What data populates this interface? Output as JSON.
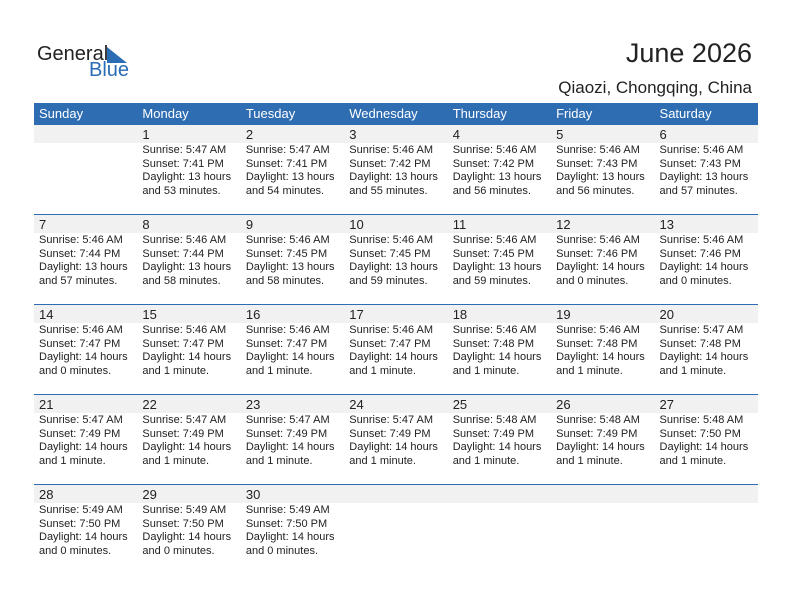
{
  "logo": {
    "text1": "General",
    "text2": "Blue"
  },
  "header": {
    "title": "June 2026",
    "location": "Qiaozi, Chongqing, China"
  },
  "colors": {
    "accent": "#2f6db3",
    "strip": "#f1f1f1"
  },
  "weekdays": [
    "Sunday",
    "Monday",
    "Tuesday",
    "Wednesday",
    "Thursday",
    "Friday",
    "Saturday"
  ],
  "weeks": [
    [
      null,
      {
        "day": "1",
        "sunrise": "Sunrise: 5:47 AM",
        "sunset": "Sunset: 7:41 PM",
        "daylight1": "Daylight: 13 hours",
        "daylight2": "and 53 minutes."
      },
      {
        "day": "2",
        "sunrise": "Sunrise: 5:47 AM",
        "sunset": "Sunset: 7:41 PM",
        "daylight1": "Daylight: 13 hours",
        "daylight2": "and 54 minutes."
      },
      {
        "day": "3",
        "sunrise": "Sunrise: 5:46 AM",
        "sunset": "Sunset: 7:42 PM",
        "daylight1": "Daylight: 13 hours",
        "daylight2": "and 55 minutes."
      },
      {
        "day": "4",
        "sunrise": "Sunrise: 5:46 AM",
        "sunset": "Sunset: 7:42 PM",
        "daylight1": "Daylight: 13 hours",
        "daylight2": "and 56 minutes."
      },
      {
        "day": "5",
        "sunrise": "Sunrise: 5:46 AM",
        "sunset": "Sunset: 7:43 PM",
        "daylight1": "Daylight: 13 hours",
        "daylight2": "and 56 minutes."
      },
      {
        "day": "6",
        "sunrise": "Sunrise: 5:46 AM",
        "sunset": "Sunset: 7:43 PM",
        "daylight1": "Daylight: 13 hours",
        "daylight2": "and 57 minutes."
      }
    ],
    [
      {
        "day": "7",
        "sunrise": "Sunrise: 5:46 AM",
        "sunset": "Sunset: 7:44 PM",
        "daylight1": "Daylight: 13 hours",
        "daylight2": "and 57 minutes."
      },
      {
        "day": "8",
        "sunrise": "Sunrise: 5:46 AM",
        "sunset": "Sunset: 7:44 PM",
        "daylight1": "Daylight: 13 hours",
        "daylight2": "and 58 minutes."
      },
      {
        "day": "9",
        "sunrise": "Sunrise: 5:46 AM",
        "sunset": "Sunset: 7:45 PM",
        "daylight1": "Daylight: 13 hours",
        "daylight2": "and 58 minutes."
      },
      {
        "day": "10",
        "sunrise": "Sunrise: 5:46 AM",
        "sunset": "Sunset: 7:45 PM",
        "daylight1": "Daylight: 13 hours",
        "daylight2": "and 59 minutes."
      },
      {
        "day": "11",
        "sunrise": "Sunrise: 5:46 AM",
        "sunset": "Sunset: 7:45 PM",
        "daylight1": "Daylight: 13 hours",
        "daylight2": "and 59 minutes."
      },
      {
        "day": "12",
        "sunrise": "Sunrise: 5:46 AM",
        "sunset": "Sunset: 7:46 PM",
        "daylight1": "Daylight: 14 hours",
        "daylight2": "and 0 minutes."
      },
      {
        "day": "13",
        "sunrise": "Sunrise: 5:46 AM",
        "sunset": "Sunset: 7:46 PM",
        "daylight1": "Daylight: 14 hours",
        "daylight2": "and 0 minutes."
      }
    ],
    [
      {
        "day": "14",
        "sunrise": "Sunrise: 5:46 AM",
        "sunset": "Sunset: 7:47 PM",
        "daylight1": "Daylight: 14 hours",
        "daylight2": "and 0 minutes."
      },
      {
        "day": "15",
        "sunrise": "Sunrise: 5:46 AM",
        "sunset": "Sunset: 7:47 PM",
        "daylight1": "Daylight: 14 hours",
        "daylight2": "and 1 minute."
      },
      {
        "day": "16",
        "sunrise": "Sunrise: 5:46 AM",
        "sunset": "Sunset: 7:47 PM",
        "daylight1": "Daylight: 14 hours",
        "daylight2": "and 1 minute."
      },
      {
        "day": "17",
        "sunrise": "Sunrise: 5:46 AM",
        "sunset": "Sunset: 7:47 PM",
        "daylight1": "Daylight: 14 hours",
        "daylight2": "and 1 minute."
      },
      {
        "day": "18",
        "sunrise": "Sunrise: 5:46 AM",
        "sunset": "Sunset: 7:48 PM",
        "daylight1": "Daylight: 14 hours",
        "daylight2": "and 1 minute."
      },
      {
        "day": "19",
        "sunrise": "Sunrise: 5:46 AM",
        "sunset": "Sunset: 7:48 PM",
        "daylight1": "Daylight: 14 hours",
        "daylight2": "and 1 minute."
      },
      {
        "day": "20",
        "sunrise": "Sunrise: 5:47 AM",
        "sunset": "Sunset: 7:48 PM",
        "daylight1": "Daylight: 14 hours",
        "daylight2": "and 1 minute."
      }
    ],
    [
      {
        "day": "21",
        "sunrise": "Sunrise: 5:47 AM",
        "sunset": "Sunset: 7:49 PM",
        "daylight1": "Daylight: 14 hours",
        "daylight2": "and 1 minute."
      },
      {
        "day": "22",
        "sunrise": "Sunrise: 5:47 AM",
        "sunset": "Sunset: 7:49 PM",
        "daylight1": "Daylight: 14 hours",
        "daylight2": "and 1 minute."
      },
      {
        "day": "23",
        "sunrise": "Sunrise: 5:47 AM",
        "sunset": "Sunset: 7:49 PM",
        "daylight1": "Daylight: 14 hours",
        "daylight2": "and 1 minute."
      },
      {
        "day": "24",
        "sunrise": "Sunrise: 5:47 AM",
        "sunset": "Sunset: 7:49 PM",
        "daylight1": "Daylight: 14 hours",
        "daylight2": "and 1 minute."
      },
      {
        "day": "25",
        "sunrise": "Sunrise: 5:48 AM",
        "sunset": "Sunset: 7:49 PM",
        "daylight1": "Daylight: 14 hours",
        "daylight2": "and 1 minute."
      },
      {
        "day": "26",
        "sunrise": "Sunrise: 5:48 AM",
        "sunset": "Sunset: 7:49 PM",
        "daylight1": "Daylight: 14 hours",
        "daylight2": "and 1 minute."
      },
      {
        "day": "27",
        "sunrise": "Sunrise: 5:48 AM",
        "sunset": "Sunset: 7:50 PM",
        "daylight1": "Daylight: 14 hours",
        "daylight2": "and 1 minute."
      }
    ],
    [
      {
        "day": "28",
        "sunrise": "Sunrise: 5:49 AM",
        "sunset": "Sunset: 7:50 PM",
        "daylight1": "Daylight: 14 hours",
        "daylight2": "and 0 minutes."
      },
      {
        "day": "29",
        "sunrise": "Sunrise: 5:49 AM",
        "sunset": "Sunset: 7:50 PM",
        "daylight1": "Daylight: 14 hours",
        "daylight2": "and 0 minutes."
      },
      {
        "day": "30",
        "sunrise": "Sunrise: 5:49 AM",
        "sunset": "Sunset: 7:50 PM",
        "daylight1": "Daylight: 14 hours",
        "daylight2": "and 0 minutes."
      },
      null,
      null,
      null,
      null
    ]
  ]
}
